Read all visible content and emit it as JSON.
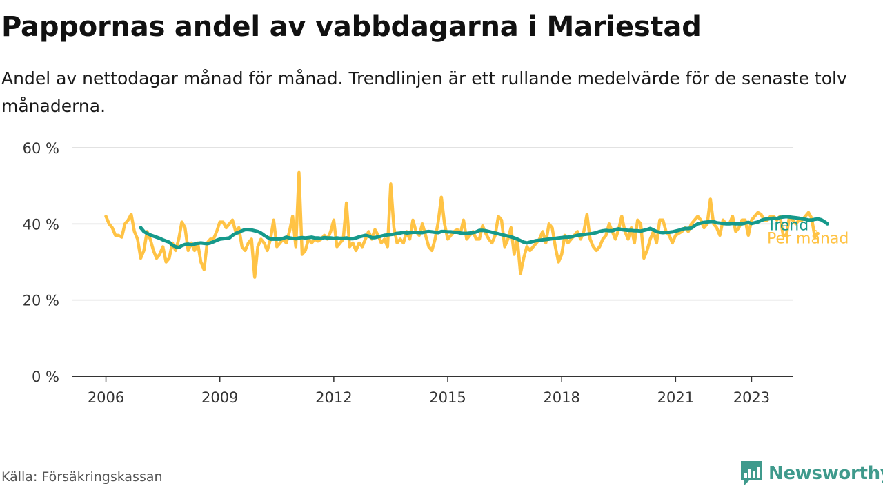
{
  "header": {
    "title": "Pappornas andel av vabbdagarna i Mariestad",
    "subtitle": "Andel av nettodagar månad för månad. Trendlinjen är ett rullande medelvärde för de senaste tolv månaderna."
  },
  "footer": {
    "source": "Källa: Försäkringskassan",
    "brand": "Newsworthy",
    "brand_icon": "bar-chart-icon"
  },
  "colors": {
    "monthly": "#ffc345",
    "trend": "#15998b",
    "grid": "#d9d9d9",
    "axis": "#333333",
    "brand": "#3f9a8c"
  },
  "chart_data": {
    "type": "line",
    "x_unit": "year",
    "x_ticks": [
      2006,
      2009,
      2012,
      2015,
      2018,
      2021,
      2023
    ],
    "x_tick_labels": [
      "2006",
      "2009",
      "2012",
      "2015",
      "2018",
      "2021",
      "2023"
    ],
    "xlim": [
      2005.1,
      2024.1
    ],
    "y_ticks": [
      0,
      20,
      40,
      60
    ],
    "y_tick_labels": [
      "0 %",
      "20 %",
      "40 %",
      "60 %"
    ],
    "ylim": [
      0,
      60
    ],
    "grid": true,
    "legend": "inline-right",
    "series": [
      {
        "name": "Per månad",
        "key": "monthly",
        "x_start": 2006.0,
        "step": 0.08333,
        "values": [
          42,
          40,
          39,
          37,
          37,
          36.5,
          40,
          41,
          42.5,
          38,
          36,
          31,
          33,
          38,
          36,
          33,
          31,
          32,
          34,
          30,
          31,
          35,
          33,
          36,
          40.5,
          39,
          33,
          35,
          33,
          35,
          30,
          28,
          35,
          36,
          36,
          38,
          40.5,
          40.5,
          39,
          40,
          41,
          38,
          39,
          34,
          33,
          35,
          36,
          26,
          34,
          36,
          35,
          33,
          36,
          41,
          34,
          35,
          36,
          35,
          38,
          42,
          34,
          53.5,
          32,
          33,
          36,
          35,
          36,
          35.5,
          36,
          37,
          36,
          38,
          41,
          34,
          35,
          36,
          45.5,
          34,
          35,
          33,
          35,
          34,
          36,
          38,
          36,
          38.5,
          37,
          35,
          36,
          34,
          50.5,
          39,
          35,
          36,
          35,
          38,
          36,
          41,
          38,
          37,
          40,
          37,
          34,
          33,
          36,
          40.5,
          47,
          40,
          36,
          37,
          38,
          38.5,
          37.5,
          41,
          36,
          37,
          38,
          36,
          36,
          39.5,
          37.5,
          36,
          35,
          37,
          42,
          41,
          34,
          36,
          39,
          32,
          36,
          27,
          31,
          34,
          33,
          34,
          35,
          36,
          38,
          35,
          40,
          39,
          34,
          30,
          32,
          37,
          35,
          36,
          37,
          38,
          36,
          38,
          42.5,
          36,
          34,
          33,
          34,
          36,
          37,
          40,
          38,
          36,
          38.5,
          42,
          38,
          36,
          39,
          35,
          41,
          40,
          31,
          33,
          36,
          38,
          35,
          41,
          41,
          38,
          37,
          35,
          37,
          37.5,
          38,
          39,
          38,
          40,
          41,
          42,
          41,
          39,
          40,
          46.5,
          40,
          39,
          37,
          41,
          40,
          40,
          42,
          38,
          39,
          41,
          41,
          37,
          41,
          42,
          43,
          42.5,
          41,
          41,
          42,
          42,
          41,
          42,
          37,
          37,
          42,
          41,
          40,
          41,
          41,
          42,
          43,
          41.5,
          36.5,
          37.5
        ]
      },
      {
        "name": "Trend",
        "key": "trend",
        "x_start": 2006.917,
        "step": 0.08333,
        "values": [
          39,
          38,
          37.5,
          37.1,
          36.8,
          36.5,
          36.2,
          35.8,
          35.5,
          35.2,
          34.4,
          34,
          33.8,
          34.3,
          34.6,
          34.7,
          34.5,
          34.7,
          34.9,
          35,
          34.9,
          34.8,
          35,
          35.3,
          35.7,
          36,
          36.1,
          36.2,
          36.3,
          37,
          37.5,
          37.8,
          38.2,
          38.5,
          38.5,
          38.4,
          38.2,
          38,
          37.6,
          37,
          36.5,
          36,
          36,
          36,
          36,
          36.2,
          36.5,
          36.3,
          36.2,
          36.1,
          36.3,
          36.4,
          36.3,
          36.4,
          36.5,
          36.3,
          36.3,
          36.2,
          36.4,
          36.3,
          36.3,
          36.2,
          36.3,
          36.2,
          36.2,
          36.3,
          36.1,
          36.1,
          36.3,
          36.6,
          36.8,
          37,
          36.8,
          36.4,
          36.4,
          36.6,
          36.8,
          37,
          37.1,
          37.2,
          37.3,
          37.5,
          37.6,
          37.8,
          37.6,
          37.7,
          37.8,
          37.8,
          37.7,
          37.7,
          37.9,
          38,
          37.9,
          37.8,
          37.7,
          38,
          38,
          37.9,
          37.9,
          37.8,
          37.8,
          37.6,
          37.5,
          37.5,
          37.6,
          37.7,
          37.9,
          38.3,
          38.3,
          38.2,
          38,
          37.8,
          37.6,
          37.4,
          37.2,
          37,
          36.8,
          36.6,
          36.3,
          36,
          35.6,
          35.2,
          35,
          35.2,
          35.4,
          35.6,
          35.7,
          35.8,
          35.9,
          36,
          36.1,
          36.2,
          36.3,
          36.4,
          36.5,
          36.5,
          36.6,
          36.8,
          37,
          37.1,
          37.2,
          37.3,
          37.4,
          37.5,
          37.7,
          38,
          38.2,
          38.3,
          38.2,
          38.2,
          38.5,
          38.7,
          38.5,
          38.4,
          38.3,
          38.3,
          38.2,
          38.2,
          38.1,
          38.3,
          38.5,
          38.8,
          38.4,
          38,
          37.8,
          37.7,
          37.8,
          37.8,
          37.9,
          38.1,
          38.3,
          38.6,
          38.8,
          38.8,
          38.9,
          39.5,
          40,
          40.2,
          40.4,
          40.5,
          40.6,
          40.6,
          40.3,
          40.2,
          40.1,
          40,
          40,
          40.1,
          40,
          40,
          40,
          40.2,
          40.4,
          40.1,
          40.3,
          40.5,
          40.9,
          41.2,
          41.3,
          41.4,
          41.5,
          41.4,
          41.7,
          41.8,
          41.9,
          41.8,
          41.7,
          41.6,
          41.5,
          41.3,
          41.2,
          41,
          41,
          41.2,
          41.3,
          41.1,
          40.6,
          40
        ]
      }
    ]
  }
}
